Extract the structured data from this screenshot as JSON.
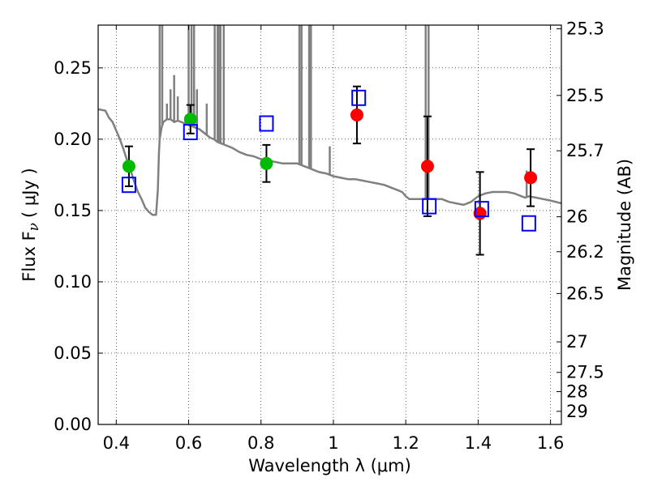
{
  "chart_data": {
    "type": "scatter",
    "xlabel": "Wavelength  λ (μm)",
    "ylabel": "Flux  F",
    "ylabel_subscript": "ν",
    "ylabel_unit": "( μJy )",
    "y2label": "Magnitude (AB)",
    "xlim": [
      0.35,
      1.63
    ],
    "ylim": [
      0.0,
      0.28
    ],
    "grid": true,
    "x_ticks": [
      0.4,
      0.6,
      0.8,
      1.0,
      1.2,
      1.4,
      1.6
    ],
    "x_tick_labels": [
      "0.4",
      "0.6",
      "0.8",
      "1",
      "1.2",
      "1.4",
      "1.6"
    ],
    "y_ticks": [
      0.0,
      0.05,
      0.1,
      0.15,
      0.2,
      0.25
    ],
    "y_tick_labels": [
      "0.00",
      "0.05",
      "0.10",
      "0.15",
      "0.20",
      "0.25"
    ],
    "mag_ticks": [
      {
        "label": "25.3",
        "flux": 0.2774
      },
      {
        "label": "25.5",
        "flux": 0.2307
      },
      {
        "label": "25.7",
        "flux": 0.1919
      },
      {
        "label": "26",
        "flux": 0.1456
      },
      {
        "label": "26.2",
        "flux": 0.1211
      },
      {
        "label": "26.5",
        "flux": 0.0918
      },
      {
        "label": "27",
        "flux": 0.0579
      },
      {
        "label": "27.5",
        "flux": 0.0365
      },
      {
        "label": "28",
        "flux": 0.023
      },
      {
        "label": "29",
        "flux": 0.0092
      }
    ],
    "series": [
      {
        "color": "#808080",
        "marker": "line",
        "x": [
          0.35,
          0.37,
          0.38,
          0.39,
          0.4,
          0.41,
          0.42,
          0.43,
          0.44,
          0.45,
          0.46,
          0.47,
          0.48,
          0.49,
          0.5,
          0.51,
          0.515,
          0.518,
          0.52,
          0.525,
          0.53,
          0.54,
          0.55,
          0.56,
          0.57,
          0.58,
          0.59,
          0.6,
          0.61,
          0.62,
          0.63,
          0.64,
          0.65,
          0.66,
          0.67,
          0.68,
          0.69,
          0.7,
          0.72,
          0.74,
          0.76,
          0.78,
          0.8,
          0.82,
          0.84,
          0.86,
          0.88,
          0.9,
          0.92,
          0.94,
          0.96,
          0.98,
          1.0,
          1.02,
          1.04,
          1.06,
          1.08,
          1.1,
          1.12,
          1.14,
          1.16,
          1.18,
          1.19,
          1.2,
          1.21,
          1.22,
          1.24,
          1.26,
          1.28,
          1.3,
          1.32,
          1.34,
          1.36,
          1.38,
          1.4,
          1.42,
          1.44,
          1.46,
          1.48,
          1.5,
          1.52,
          1.53,
          1.54,
          1.56,
          1.58,
          1.6,
          1.63
        ],
        "y": [
          0.221,
          0.22,
          0.215,
          0.212,
          0.206,
          0.2,
          0.193,
          0.185,
          0.178,
          0.17,
          0.163,
          0.158,
          0.152,
          0.149,
          0.147,
          0.147,
          0.165,
          0.19,
          0.2,
          0.208,
          0.212,
          0.214,
          0.214,
          0.212,
          0.213,
          0.212,
          0.211,
          0.21,
          0.209,
          0.208,
          0.207,
          0.205,
          0.203,
          0.201,
          0.2,
          0.198,
          0.197,
          0.196,
          0.194,
          0.191,
          0.189,
          0.188,
          0.186,
          0.185,
          0.184,
          0.183,
          0.183,
          0.183,
          0.181,
          0.179,
          0.177,
          0.176,
          0.174,
          0.173,
          0.172,
          0.172,
          0.171,
          0.17,
          0.169,
          0.168,
          0.166,
          0.164,
          0.163,
          0.16,
          0.158,
          0.158,
          0.158,
          0.158,
          0.158,
          0.158,
          0.156,
          0.155,
          0.154,
          0.156,
          0.16,
          0.162,
          0.163,
          0.163,
          0.163,
          0.162,
          0.16,
          0.159,
          0.16,
          0.159,
          0.158,
          0.157,
          0.155
        ]
      },
      {
        "color": "#00bb00",
        "marker": "circle",
        "x": [
          0.435,
          0.605,
          0.815
        ],
        "y": [
          0.181,
          0.214,
          0.183
        ],
        "yerr": [
          0.014,
          0.01,
          0.013
        ]
      },
      {
        "color": "#ff0000",
        "marker": "circle",
        "x": [
          1.065,
          1.26,
          1.405,
          1.545
        ],
        "y": [
          0.217,
          0.181,
          0.148,
          0.173
        ],
        "yerr": [
          0.02,
          0.035,
          0.029,
          0.02
        ]
      },
      {
        "color": "#0000ff",
        "marker": "square",
        "x": [
          0.435,
          0.605,
          0.815,
          1.07,
          1.265,
          1.41,
          1.54
        ],
        "y": [
          0.168,
          0.205,
          0.211,
          0.229,
          0.153,
          0.151,
          0.141
        ]
      }
    ],
    "emission_lines": [
      {
        "x": 0.52,
        "y": 0.28
      },
      {
        "x": 0.527,
        "y": 0.28
      },
      {
        "x": 0.54,
        "y": 0.225
      },
      {
        "x": 0.55,
        "y": 0.235
      },
      {
        "x": 0.56,
        "y": 0.245
      },
      {
        "x": 0.57,
        "y": 0.23
      },
      {
        "x": 0.6,
        "y": 0.28
      },
      {
        "x": 0.608,
        "y": 0.28
      },
      {
        "x": 0.615,
        "y": 0.28
      },
      {
        "x": 0.623,
        "y": 0.235
      },
      {
        "x": 0.65,
        "y": 0.225
      },
      {
        "x": 0.672,
        "y": 0.28
      },
      {
        "x": 0.68,
        "y": 0.28
      },
      {
        "x": 0.684,
        "y": 0.28
      },
      {
        "x": 0.688,
        "y": 0.28
      },
      {
        "x": 0.697,
        "y": 0.28
      },
      {
        "x": 0.906,
        "y": 0.28
      },
      {
        "x": 0.912,
        "y": 0.28
      },
      {
        "x": 0.933,
        "y": 0.28
      },
      {
        "x": 0.938,
        "y": 0.28
      },
      {
        "x": 0.99,
        "y": 0.195
      },
      {
        "x": 1.255,
        "y": 0.28
      },
      {
        "x": 1.263,
        "y": 0.28
      },
      {
        "x": 1.534,
        "y": 0.178
      }
    ]
  }
}
